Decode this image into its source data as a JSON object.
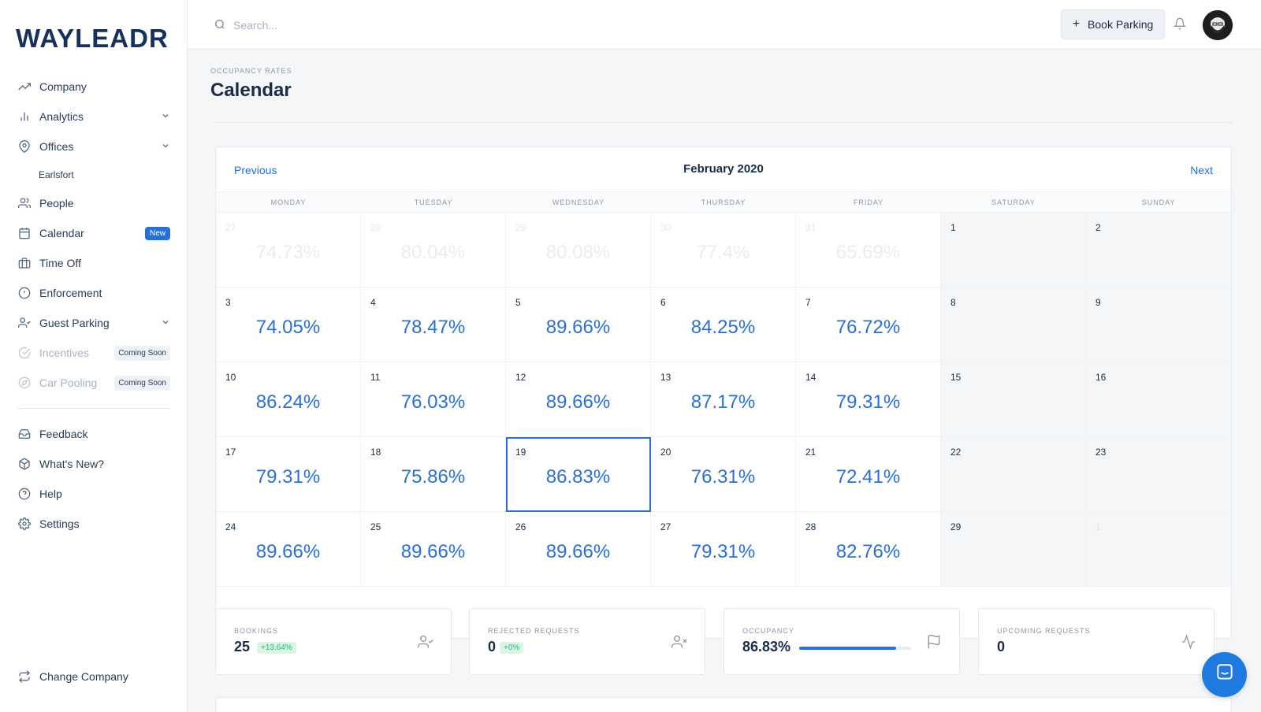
{
  "app": {
    "logo": "WAYLEADR"
  },
  "colors": {
    "accent": "#2a6fd6",
    "positive": "#2bb673",
    "text": "#1a2b48"
  },
  "sidebar": {
    "items": [
      {
        "label": "Company",
        "icon": "trending-up-icon"
      },
      {
        "label": "Analytics",
        "icon": "bar-chart-icon"
      },
      {
        "label": "Offices",
        "icon": "map-pin-icon"
      },
      {
        "label": "Earlsfort"
      },
      {
        "label": "People",
        "icon": "users-icon"
      },
      {
        "label": "Calendar",
        "icon": "calendar-icon",
        "badge": "New"
      },
      {
        "label": "Time Off",
        "icon": "briefcase-icon"
      },
      {
        "label": "Enforcement",
        "icon": "alert-circle-icon"
      },
      {
        "label": "Guest Parking",
        "icon": "user-check-icon"
      },
      {
        "label": "Incentives",
        "icon": "check-circle-icon",
        "badge": "Coming Soon"
      },
      {
        "label": "Car Pooling",
        "icon": "compass-icon",
        "badge": "Coming Soon"
      },
      {
        "label": "Feedback",
        "icon": "inbox-icon"
      },
      {
        "label": "What's New?",
        "icon": "package-icon"
      },
      {
        "label": "Help",
        "icon": "help-circle-icon"
      },
      {
        "label": "Settings",
        "icon": "settings-icon"
      }
    ],
    "change_company": "Change Company"
  },
  "topbar": {
    "search_placeholder": "Search...",
    "book_parking": "Book Parking"
  },
  "page": {
    "eyebrow": "OCCUPANCY RATES",
    "title": "Calendar"
  },
  "calendar": {
    "month": "February 2020",
    "previous": "Previous",
    "next": "Next",
    "weekdays": [
      "MONDAY",
      "TUESDAY",
      "WEDNESDAY",
      "THURSDAY",
      "FRIDAY",
      "SATURDAY",
      "SUNDAY"
    ],
    "days": [
      {
        "day": "27",
        "pct": "74.73%",
        "muted": true
      },
      {
        "day": "28",
        "pct": "80.04%",
        "muted": true
      },
      {
        "day": "29",
        "pct": "80.08%",
        "muted": true
      },
      {
        "day": "30",
        "pct": "77.4%",
        "muted": true
      },
      {
        "day": "31",
        "pct": "65.69%",
        "muted": true
      },
      {
        "day": "1",
        "pct": "",
        "weekend": true
      },
      {
        "day": "2",
        "pct": "",
        "weekend": true
      },
      {
        "day": "3",
        "pct": "74.05%"
      },
      {
        "day": "4",
        "pct": "78.47%"
      },
      {
        "day": "5",
        "pct": "89.66%"
      },
      {
        "day": "6",
        "pct": "84.25%"
      },
      {
        "day": "7",
        "pct": "76.72%"
      },
      {
        "day": "8",
        "pct": "",
        "weekend": true
      },
      {
        "day": "9",
        "pct": "",
        "weekend": true
      },
      {
        "day": "10",
        "pct": "86.24%"
      },
      {
        "day": "11",
        "pct": "76.03%"
      },
      {
        "day": "12",
        "pct": "89.66%"
      },
      {
        "day": "13",
        "pct": "87.17%"
      },
      {
        "day": "14",
        "pct": "79.31%"
      },
      {
        "day": "15",
        "pct": "",
        "weekend": true
      },
      {
        "day": "16",
        "pct": "",
        "weekend": true
      },
      {
        "day": "17",
        "pct": "79.31%"
      },
      {
        "day": "18",
        "pct": "75.86%"
      },
      {
        "day": "19",
        "pct": "86.83%",
        "selected": true
      },
      {
        "day": "20",
        "pct": "76.31%"
      },
      {
        "day": "21",
        "pct": "72.41%"
      },
      {
        "day": "22",
        "pct": "",
        "weekend": true
      },
      {
        "day": "23",
        "pct": "",
        "weekend": true
      },
      {
        "day": "24",
        "pct": "89.66%"
      },
      {
        "day": "25",
        "pct": "89.66%"
      },
      {
        "day": "26",
        "pct": "89.66%"
      },
      {
        "day": "27",
        "pct": "79.31%"
      },
      {
        "day": "28",
        "pct": "82.76%"
      },
      {
        "day": "29",
        "pct": "",
        "weekend": true
      },
      {
        "day": "1",
        "pct": "",
        "weekend": true,
        "muted": true
      }
    ]
  },
  "stats": {
    "bookings": {
      "label": "BOOKINGS",
      "value": "25",
      "delta": "+13.64%"
    },
    "rejected": {
      "label": "REJECTED REQUESTS",
      "value": "0",
      "delta": "+0%"
    },
    "occupancy": {
      "label": "OCCUPANCY",
      "value": "86.83%",
      "level": 86.83
    },
    "upcoming": {
      "label": "UPCOMING REQUESTS",
      "value": "0"
    }
  }
}
